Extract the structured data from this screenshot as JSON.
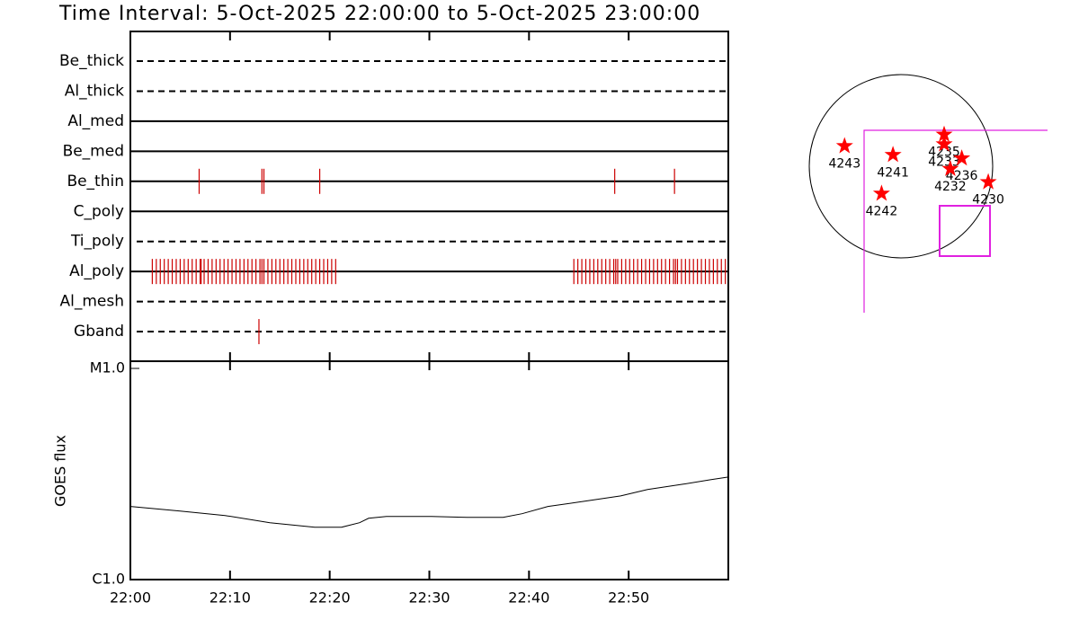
{
  "chart_data": [
    {
      "type": "event-timeline",
      "title": "Time Interval:  5-Oct-2025 22:00:00 to  5-Oct-2025 23:00:00",
      "xlim": [
        0,
        60
      ],
      "color": "#cc0000",
      "rows": [
        {
          "name": "Be_thick",
          "style": "dashed",
          "events": []
        },
        {
          "name": "Al_thick",
          "style": "dashed",
          "events": []
        },
        {
          "name": "Al_med",
          "style": "solid",
          "events": []
        },
        {
          "name": "Be_med",
          "style": "solid",
          "events": []
        },
        {
          "name": "Be_thin",
          "style": "solid",
          "events": [
            6.9,
            13.2,
            13.4,
            19.0,
            48.6,
            54.6
          ]
        },
        {
          "name": "C_poly",
          "style": "solid",
          "events": []
        },
        {
          "name": "Ti_poly",
          "style": "dashed",
          "events": []
        },
        {
          "name": "Al_poly",
          "style": "solid",
          "events": [
            2.2,
            2.6,
            3.0,
            3.4,
            3.8,
            4.2,
            4.6,
            5.0,
            5.4,
            5.8,
            6.2,
            6.6,
            7.0,
            7.1,
            7.4,
            7.8,
            8.2,
            8.6,
            9.0,
            9.4,
            9.8,
            10.2,
            10.6,
            11.0,
            11.4,
            11.8,
            12.2,
            12.6,
            13.0,
            13.2,
            13.4,
            13.8,
            14.2,
            14.6,
            15.0,
            15.4,
            15.8,
            16.2,
            16.6,
            17.0,
            17.4,
            17.8,
            18.2,
            18.6,
            19.0,
            19.4,
            19.8,
            20.2,
            20.6,
            44.5,
            44.9,
            45.3,
            45.7,
            46.1,
            46.5,
            46.9,
            47.3,
            47.7,
            48.1,
            48.5,
            48.7,
            48.9,
            49.3,
            49.7,
            50.1,
            50.5,
            50.9,
            51.3,
            51.7,
            52.1,
            52.5,
            52.9,
            53.3,
            53.7,
            54.1,
            54.5,
            54.7,
            54.9,
            55.3,
            55.7,
            56.1,
            56.5,
            56.9,
            57.3,
            57.7,
            58.1,
            58.5,
            58.9,
            59.3,
            59.7
          ]
        },
        {
          "name": "Al_mesh",
          "style": "dashed",
          "events": []
        },
        {
          "name": "Gband",
          "style": "dashed",
          "events": [
            12.9
          ]
        }
      ]
    },
    {
      "type": "line",
      "ylabel": "GOES flux",
      "log": true,
      "color": "#000000",
      "xlim": [
        0,
        60
      ],
      "xticks": [
        {
          "value": 0,
          "label": "22:00"
        },
        {
          "value": 10,
          "label": "22:10"
        },
        {
          "value": 20,
          "label": "22:20"
        },
        {
          "value": 30,
          "label": "22:30"
        },
        {
          "value": 40,
          "label": "22:40"
        },
        {
          "value": 50,
          "label": "22:50"
        }
      ],
      "ylim": [
        1e-06,
        1e-05
      ],
      "yticks": [
        {
          "value": 1e-06,
          "label": "C1.0"
        },
        {
          "value": 1e-05,
          "label": "M1.0"
        }
      ],
      "x": [
        0,
        5.0,
        9.5,
        14.0,
        18.5,
        21.2,
        23.0,
        23.9,
        25.7,
        30.2,
        33.8,
        37.4,
        39.3,
        41.9,
        45.6,
        49.2,
        51.9,
        55.5,
        58.2,
        60
      ],
      "values": [
        2.22e-06,
        2.11e-06,
        2.01e-06,
        1.86e-06,
        1.77e-06,
        1.77e-06,
        1.86e-06,
        1.95e-06,
        1.99e-06,
        1.99e-06,
        1.97e-06,
        1.97e-06,
        2.05e-06,
        2.22e-06,
        2.35e-06,
        2.49e-06,
        2.67e-06,
        2.83e-06,
        2.97e-06,
        3.06e-06
      ]
    },
    {
      "type": "map",
      "color": "#ff0000",
      "xlim": [
        -1200,
        1200
      ],
      "ylim": [
        -1200,
        1200
      ],
      "regions": [
        {
          "label": "4243",
          "x": -602,
          "y": 216
        },
        {
          "label": "4241",
          "x": -85,
          "y": 122
        },
        {
          "label": "4235",
          "x": 461,
          "y": 339
        },
        {
          "label": "4233",
          "x": 461,
          "y": 235
        },
        {
          "label": "4236",
          "x": 649,
          "y": 85
        },
        {
          "label": "4232",
          "x": 527,
          "y": -28
        },
        {
          "label": "4230",
          "x": 932,
          "y": -169
        },
        {
          "label": "4242",
          "x": -207,
          "y": -292
        }
      ]
    }
  ]
}
